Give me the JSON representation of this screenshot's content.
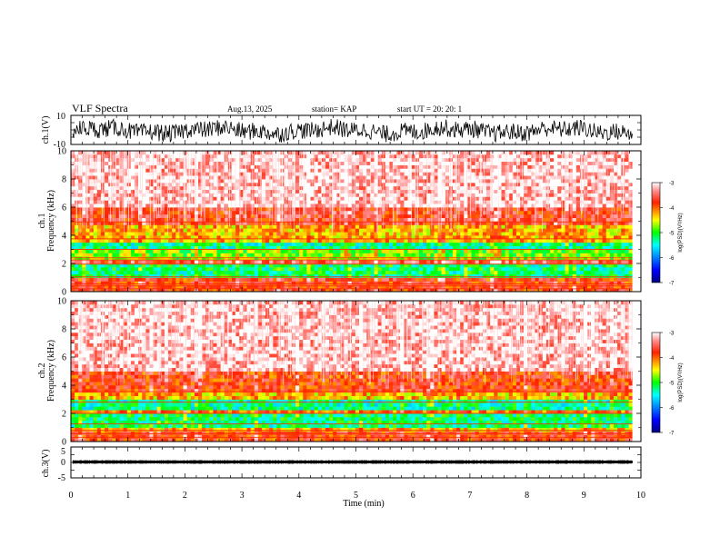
{
  "header": {
    "title": "VLF Spectra",
    "date": "Aug.13, 2025",
    "station": "station= KAP",
    "start_time": "start  UT =   20: 20: 1"
  },
  "chart_data": {
    "type": "heatmap",
    "title": "VLF Spectra",
    "x": {
      "label": "Time  (min)",
      "range": [
        0,
        10
      ],
      "ticks": [
        "0",
        "1",
        "2",
        "3",
        "4",
        "5",
        "6",
        "7",
        "8",
        "9",
        "10"
      ],
      "data_end": 9.85
    },
    "panels": [
      {
        "id": "ch1_waveform",
        "type": "line",
        "ylabel": "ch.1(V)",
        "ylim": [
          -10,
          10
        ],
        "tick_labels": [
          "10",
          "-10"
        ],
        "mean": -0.5,
        "amplitude": 6
      },
      {
        "id": "ch1_spectrogram",
        "type": "heatmap",
        "ylabel_line1": "ch.1",
        "ylabel_line2": "Frequency  (kHz)",
        "ylim": [
          0,
          10
        ],
        "tick_labels": [
          "0",
          "2",
          "4",
          "6",
          "8",
          "10"
        ],
        "bands": [
          {
            "from": 0.0,
            "to": 1.0,
            "level": -3.8
          },
          {
            "from": 1.0,
            "to": 2.0,
            "level": -5.2
          },
          {
            "from": 2.0,
            "to": 2.3,
            "level": -3.6
          },
          {
            "from": 2.3,
            "to": 3.0,
            "level": -4.8
          },
          {
            "from": 3.0,
            "to": 3.6,
            "level": -5.3
          },
          {
            "from": 3.6,
            "to": 4.8,
            "level": -4.3
          },
          {
            "from": 4.8,
            "to": 6.0,
            "level": -3.7
          },
          {
            "from": 6.0,
            "to": 10.0,
            "level": -3.2
          }
        ],
        "lines_khz": [
          0.2,
          0.4,
          0.55,
          1.05,
          1.95,
          2.25,
          2.4,
          3.0,
          3.75,
          4.95
        ],
        "colorbar": {
          "label": "log(PSD)(V²/Hz)",
          "range": [
            -7,
            -3
          ],
          "tick_labels": [
            "-3",
            "-4",
            "-5",
            "-6",
            "-7"
          ]
        }
      },
      {
        "id": "ch2_spectrogram",
        "type": "heatmap",
        "ylabel_line1": "ch.2",
        "ylabel_line2": "Frequency  (kHz)",
        "ylim": [
          0,
          10
        ],
        "tick_labels": [
          "0",
          "2",
          "4",
          "6",
          "8",
          "10"
        ],
        "bands": [
          {
            "from": 0.0,
            "to": 0.7,
            "level": -3.8
          },
          {
            "from": 0.7,
            "to": 1.1,
            "level": -4.3
          },
          {
            "from": 1.1,
            "to": 1.9,
            "level": -5.2
          },
          {
            "from": 1.9,
            "to": 2.2,
            "level": -4.0
          },
          {
            "from": 2.2,
            "to": 3.1,
            "level": -5.3
          },
          {
            "from": 3.1,
            "to": 3.6,
            "level": -4.3
          },
          {
            "from": 3.6,
            "to": 5.0,
            "level": -3.8
          },
          {
            "from": 5.0,
            "to": 10.0,
            "level": -3.2
          }
        ],
        "lines_khz": [
          0.3,
          0.55,
          0.8,
          1.25,
          2.0,
          2.8,
          3.55
        ],
        "colorbar": {
          "label": "log(PSD)(V²/Hz)",
          "range": [
            -7,
            -3
          ],
          "tick_labels": [
            "-3",
            "-4",
            "-5",
            "-6",
            "-7"
          ]
        }
      },
      {
        "id": "ch3_waveform",
        "type": "line",
        "ylabel": "ch.3(V)",
        "ylim": [
          -5,
          5
        ],
        "tick_labels": [
          "5",
          "0",
          "-5"
        ],
        "mean": 0.15,
        "amplitude": 0.45
      }
    ]
  }
}
